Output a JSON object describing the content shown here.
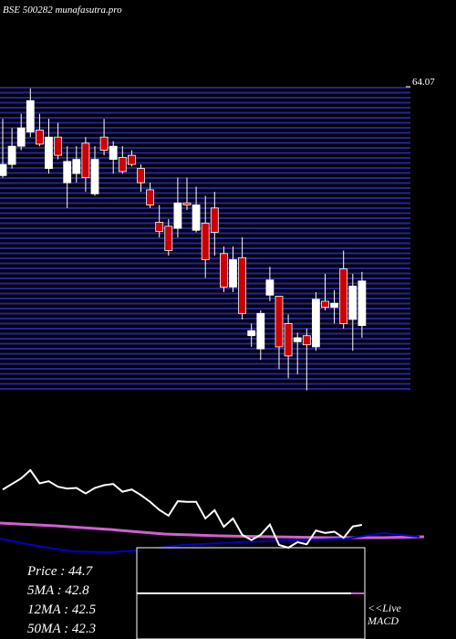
{
  "chart_data": {
    "type": "candlestick",
    "title": "BSE 500282 munafasutra.pro",
    "open": [
      55.3,
      56.4,
      58.2,
      59.6,
      59.8,
      56.0,
      59.1,
      54.6,
      55.5,
      58.5,
      53.5,
      59.1,
      56.9,
      57.1,
      57.3,
      56.0,
      53.9,
      50.7,
      50.3,
      50.1,
      52.6,
      49.9,
      50.6,
      52.1,
      47.6,
      44.3,
      47.2,
      39.5,
      38.2,
      43.5,
      43.4,
      40.7,
      38.9,
      39.5,
      38.4,
      42.9,
      42.3,
      46.1,
      41.1,
      40.5
    ],
    "high": [
      60.9,
      60.0,
      61.4,
      63.9,
      61.4,
      60.9,
      60.5,
      58.2,
      58.2,
      59.1,
      58.2,
      60.9,
      58.7,
      58.2,
      57.8,
      56.4,
      54.6,
      52.4,
      51.0,
      55.1,
      55.1,
      54.2,
      53.3,
      53.7,
      48.3,
      48.3,
      49.2,
      40.7,
      42.0,
      46.3,
      43.4,
      41.6,
      39.8,
      40.2,
      43.8,
      45.6,
      44.0,
      47.9,
      45.6,
      45.8
    ],
    "low": [
      55.1,
      56.0,
      57.8,
      59.1,
      58.2,
      55.5,
      56.9,
      52.1,
      54.6,
      53.7,
      53.3,
      57.3,
      55.5,
      55.5,
      56.2,
      53.7,
      52.1,
      49.2,
      47.4,
      49.2,
      51.9,
      49.7,
      45.2,
      47.4,
      43.8,
      43.8,
      41.1,
      38.4,
      37.1,
      42.9,
      36.2,
      35.3,
      35.7,
      34.1,
      38.0,
      42.0,
      40.7,
      40.2,
      38.0,
      39.3
    ],
    "close": [
      56.4,
      58.2,
      60.0,
      62.7,
      58.4,
      59.1,
      57.3,
      56.7,
      56.9,
      55.1,
      56.9,
      57.8,
      58.2,
      55.7,
      56.4,
      54.6,
      52.4,
      49.8,
      47.9,
      52.6,
      52.4,
      52.4,
      47.0,
      49.7,
      44.3,
      47.0,
      41.7,
      40.0,
      41.7,
      45.0,
      38.4,
      37.5,
      39.3,
      38.6,
      43.1,
      42.3,
      42.7,
      40.7,
      44.4,
      44.9
    ],
    "up_color": "#ffffff",
    "down_color": "#cc0000",
    "ylim": [
      34.07,
      64.07
    ],
    "yticks": [
      64.07
    ],
    "annotations": [
      "Price   :  44.7",
      "5MA  : 42.8",
      "12MA : 42.5",
      "50MA : 42.3"
    ],
    "macd_label": [
      "<<Live",
      "MACD"
    ]
  }
}
